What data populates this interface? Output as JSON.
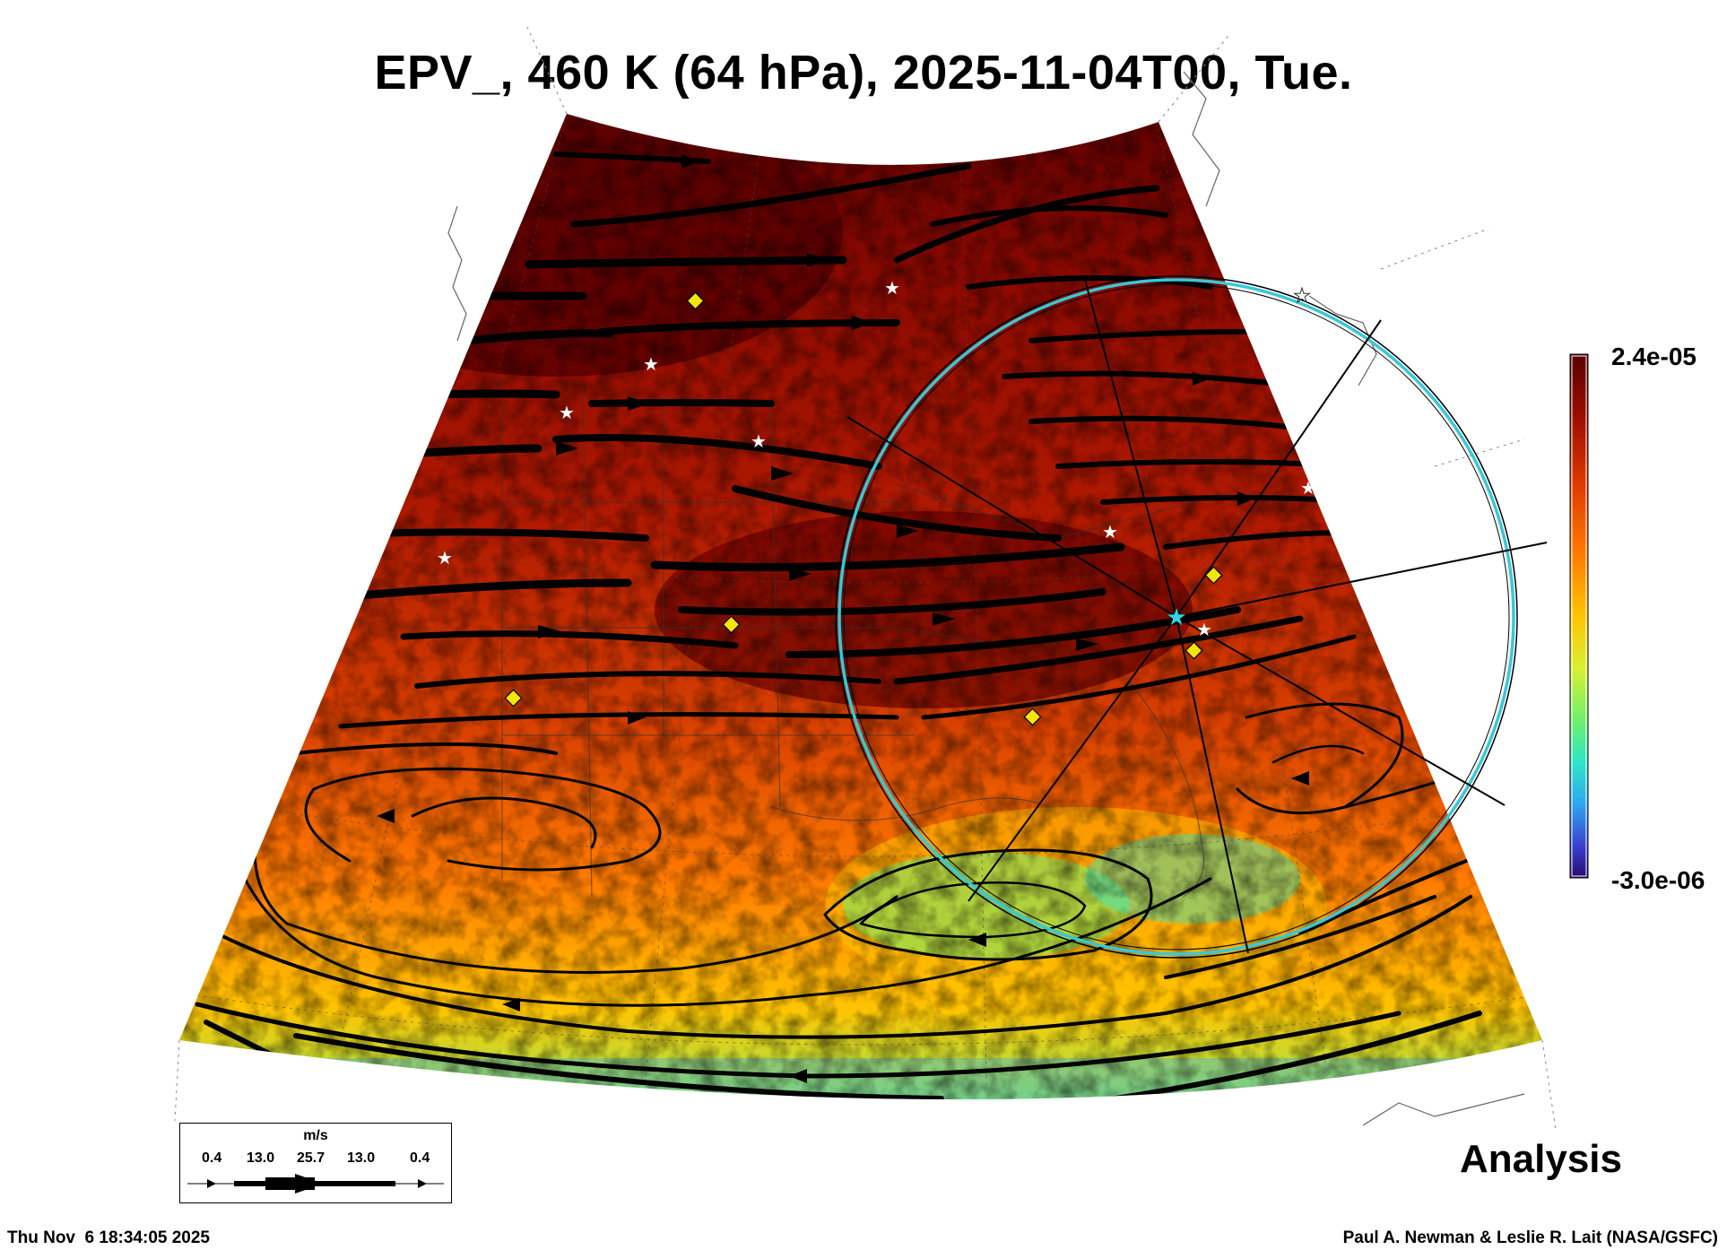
{
  "title": "EPV_, 460 K (64 hPa), 2025-11-04T00, Tue.",
  "colorbar": {
    "max_label": "2.4e-05",
    "min_label": "-3.0e-06",
    "colors": [
      "#2a0a6e",
      "#3a3fd0",
      "#2fa5f0",
      "#2ee6c8",
      "#6ef06e",
      "#d8f030",
      "#ffc400",
      "#ff7a00",
      "#e03a00",
      "#9c0e00",
      "#5a0000"
    ]
  },
  "analysis_label": "Analysis",
  "wind_legend": {
    "unit": "m/s",
    "values": [
      "0.4",
      "13.0",
      "25.7",
      "13.0",
      "0.4"
    ]
  },
  "timestamp": "Thu Nov  6 18:34:05 2025",
  "credit": "Paul A. Newman & Leslie R. Lait (NASA/GSFC)",
  "colors": {
    "circle": "#38c8d8",
    "marker_diamond": "#f4e60a",
    "marker_star": "#ffffff",
    "center_star": "#2ed6e6"
  }
}
